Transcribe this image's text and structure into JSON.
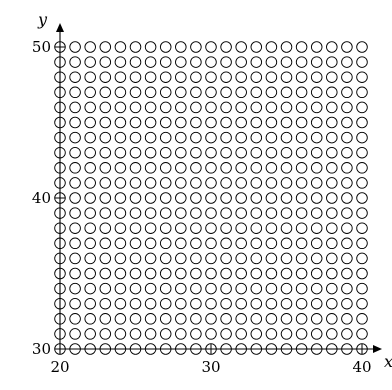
{
  "chart_data": {
    "type": "scatter",
    "title": "",
    "xlabel": "x",
    "ylabel": "y",
    "xlim": [
      20,
      40
    ],
    "ylim": [
      30,
      50
    ],
    "xticks": [
      20,
      30,
      40
    ],
    "yticks": [
      30,
      40,
      50
    ],
    "grid": false,
    "colors": {
      "filled": "#d6107a",
      "empty": "#ffffff",
      "stroke": "#000000"
    },
    "series": [
      {
        "name": "",
        "marker": "filled-circle",
        "rule": "x >= 30 and y <= x - 30"
      },
      {
        "name": "",
        "marker": "open-circle",
        "rule": "all other integer lattice points"
      }
    ],
    "lattice": {
      "x": [
        20,
        40
      ],
      "y": [
        30,
        50
      ],
      "step": 1
    }
  }
}
